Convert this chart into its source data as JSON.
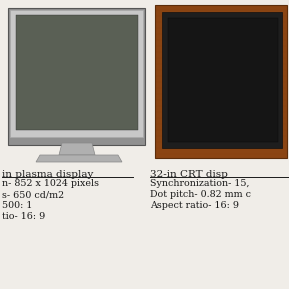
{
  "background_color": "#f0ede8",
  "left_title": "in plasma display",
  "left_lines": [
    "n- 852 x 1024 pixels",
    "s- 650 cd/m2",
    "500: 1",
    "tio- 16: 9"
  ],
  "right_title": "32-in CRT disp",
  "right_lines": [
    "Synchronization- 15,",
    "Dot pitch- 0.82 mm c",
    "Aspect ratio- 16: 9"
  ],
  "text_color": "#1a1a1a",
  "title_fontsize": 7.5,
  "body_fontsize": 6.8
}
